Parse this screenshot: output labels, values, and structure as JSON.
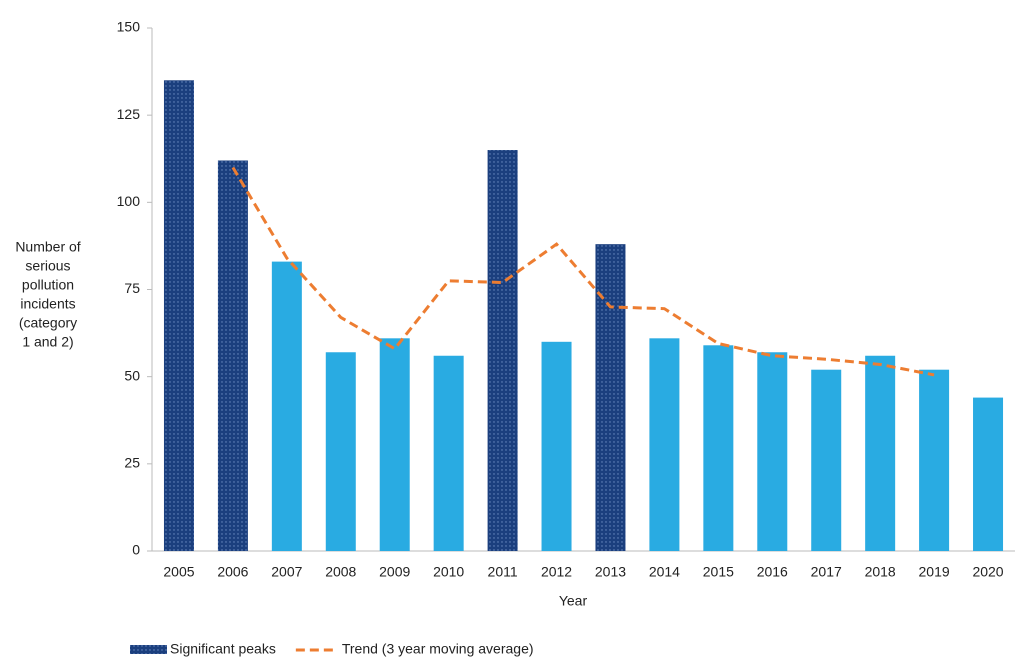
{
  "chart_data": {
    "type": "bar",
    "x_label": "Year",
    "y_label": [
      "Number of",
      "serious",
      "pollution",
      "incidents",
      "(category",
      "1 and 2)"
    ],
    "categories": [
      "2005",
      "2006",
      "2007",
      "2008",
      "2009",
      "2010",
      "2011",
      "2012",
      "2013",
      "2014",
      "2015",
      "2016",
      "2017",
      "2018",
      "2019",
      "2020"
    ],
    "series": [
      {
        "name": "Significant peaks",
        "type": "bar",
        "color": "#1b3f7e",
        "pattern": "dots",
        "values": [
          135,
          112,
          null,
          null,
          null,
          null,
          115,
          null,
          88,
          null,
          null,
          null,
          null,
          null,
          null,
          null
        ]
      },
      {
        "type": "bar",
        "color": "#29abe2",
        "values": [
          null,
          null,
          83,
          57,
          61,
          56,
          null,
          60,
          null,
          61,
          59,
          57,
          52,
          56,
          52,
          44
        ]
      },
      {
        "name": "Trend (3 year moving average)",
        "type": "line",
        "color": "#ed7d31",
        "dashed": true,
        "values": [
          null,
          110,
          84,
          67,
          58,
          77.5,
          77,
          88,
          70,
          69.5,
          59.5,
          56,
          55,
          53.5,
          50.5,
          null
        ]
      }
    ],
    "ylim": [
      0,
      150
    ],
    "yticks": [
      0,
      25,
      50,
      75,
      100,
      125,
      150
    ],
    "grid": false
  }
}
